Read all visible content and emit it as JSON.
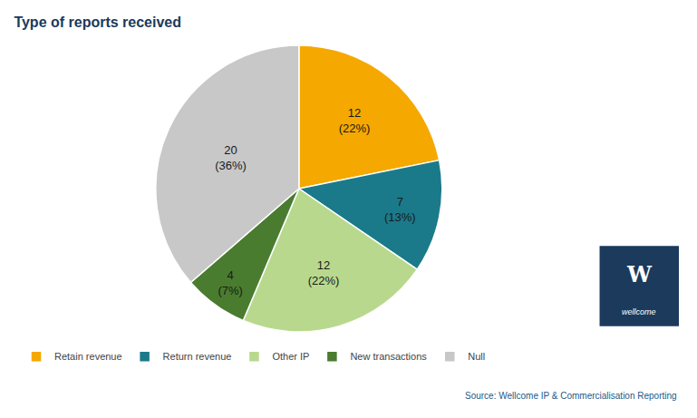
{
  "chart_data": {
    "type": "pie",
    "title": "Type of reports received",
    "categories": [
      "Retain revenue",
      "Return revenue",
      "Other IP",
      "New transactions",
      "Null"
    ],
    "values": [
      12,
      7,
      12,
      4,
      20
    ],
    "percentages": [
      22,
      13,
      22,
      7,
      36
    ],
    "percentage_labels": [
      "(22%)",
      "(13%)",
      "(22%)",
      "(7%)",
      "(36%)"
    ],
    "colors": [
      "#F5A800",
      "#1A7A8A",
      "#B8D98D",
      "#4A7C2F",
      "#C8C8C8"
    ],
    "data_labels": true,
    "legend": "bottom",
    "annotations": [
      "Source: Wellcome IP & Commercialisation Reporting",
      "W",
      "wellcome"
    ]
  }
}
